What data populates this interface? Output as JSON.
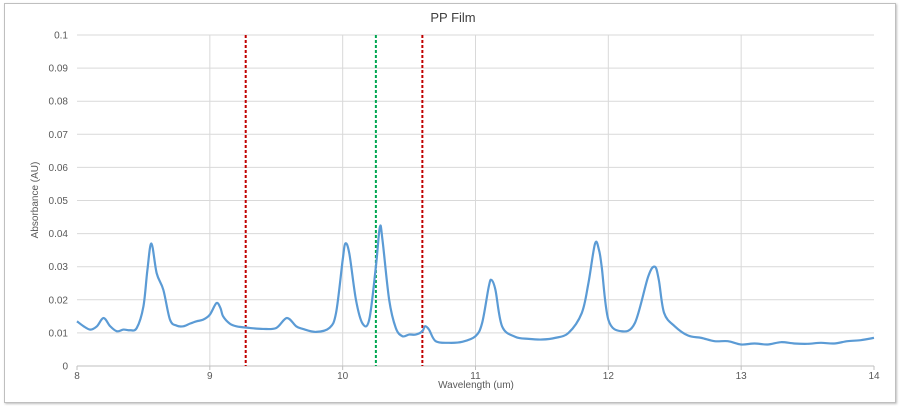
{
  "chart_data": {
    "type": "line",
    "title": "PP Film",
    "xlabel": "Wavelength (um)",
    "ylabel": "Absorbance (AU)",
    "xlim": [
      8,
      14
    ],
    "ylim": [
      0,
      0.1
    ],
    "x_ticks": [
      "8",
      "9",
      "10",
      "11",
      "12",
      "13",
      "14"
    ],
    "y_ticks": [
      "0",
      "0.01",
      "0.02",
      "0.03",
      "0.04",
      "0.05",
      "0.06",
      "0.07",
      "0.08",
      "0.09",
      "0.1"
    ],
    "grid": true,
    "series": [
      {
        "color": "#5b9bd5",
        "x": [
          8.0,
          8.05,
          8.1,
          8.15,
          8.2,
          8.25,
          8.3,
          8.35,
          8.4,
          8.45,
          8.5,
          8.53,
          8.56,
          8.6,
          8.65,
          8.7,
          8.75,
          8.8,
          8.85,
          8.9,
          8.95,
          9.0,
          9.05,
          9.08,
          9.1,
          9.15,
          9.2,
          9.3,
          9.4,
          9.5,
          9.58,
          9.65,
          9.7,
          9.8,
          9.9,
          9.95,
          10.0,
          10.02,
          10.05,
          10.1,
          10.15,
          10.2,
          10.25,
          10.28,
          10.3,
          10.35,
          10.4,
          10.45,
          10.5,
          10.55,
          10.6,
          10.62,
          10.65,
          10.7,
          10.8,
          10.9,
          11.0,
          11.05,
          11.1,
          11.12,
          11.15,
          11.2,
          11.3,
          11.4,
          11.5,
          11.6,
          11.7,
          11.8,
          11.85,
          11.9,
          11.93,
          11.95,
          12.0,
          12.1,
          12.2,
          12.3,
          12.35,
          12.38,
          12.42,
          12.5,
          12.6,
          12.7,
          12.8,
          12.9,
          13.0,
          13.1,
          13.2,
          13.3,
          13.4,
          13.5,
          13.6,
          13.7,
          13.8,
          13.9,
          14.0
        ],
        "y": [
          0.0135,
          0.012,
          0.011,
          0.012,
          0.0145,
          0.012,
          0.0105,
          0.011,
          0.0108,
          0.0115,
          0.018,
          0.029,
          0.037,
          0.028,
          0.023,
          0.014,
          0.0122,
          0.012,
          0.0128,
          0.0135,
          0.014,
          0.0155,
          0.019,
          0.0175,
          0.015,
          0.0128,
          0.012,
          0.0115,
          0.0112,
          0.0115,
          0.0145,
          0.012,
          0.0112,
          0.0103,
          0.0115,
          0.016,
          0.032,
          0.037,
          0.034,
          0.02,
          0.0128,
          0.014,
          0.03,
          0.042,
          0.038,
          0.02,
          0.0115,
          0.009,
          0.0095,
          0.0095,
          0.0105,
          0.012,
          0.011,
          0.0075,
          0.007,
          0.0073,
          0.009,
          0.013,
          0.024,
          0.026,
          0.023,
          0.012,
          0.0088,
          0.0082,
          0.008,
          0.0085,
          0.01,
          0.016,
          0.025,
          0.037,
          0.035,
          0.03,
          0.014,
          0.0105,
          0.013,
          0.027,
          0.03,
          0.026,
          0.016,
          0.012,
          0.0092,
          0.0085,
          0.0075,
          0.0075,
          0.0065,
          0.0068,
          0.0065,
          0.0072,
          0.0068,
          0.0067,
          0.007,
          0.0068,
          0.0075,
          0.0078,
          0.0085
        ]
      }
    ],
    "vlines": [
      {
        "x": 9.27,
        "color": "#c00000"
      },
      {
        "x": 10.25,
        "color": "#00a650"
      },
      {
        "x": 10.6,
        "color": "#c00000"
      }
    ]
  }
}
